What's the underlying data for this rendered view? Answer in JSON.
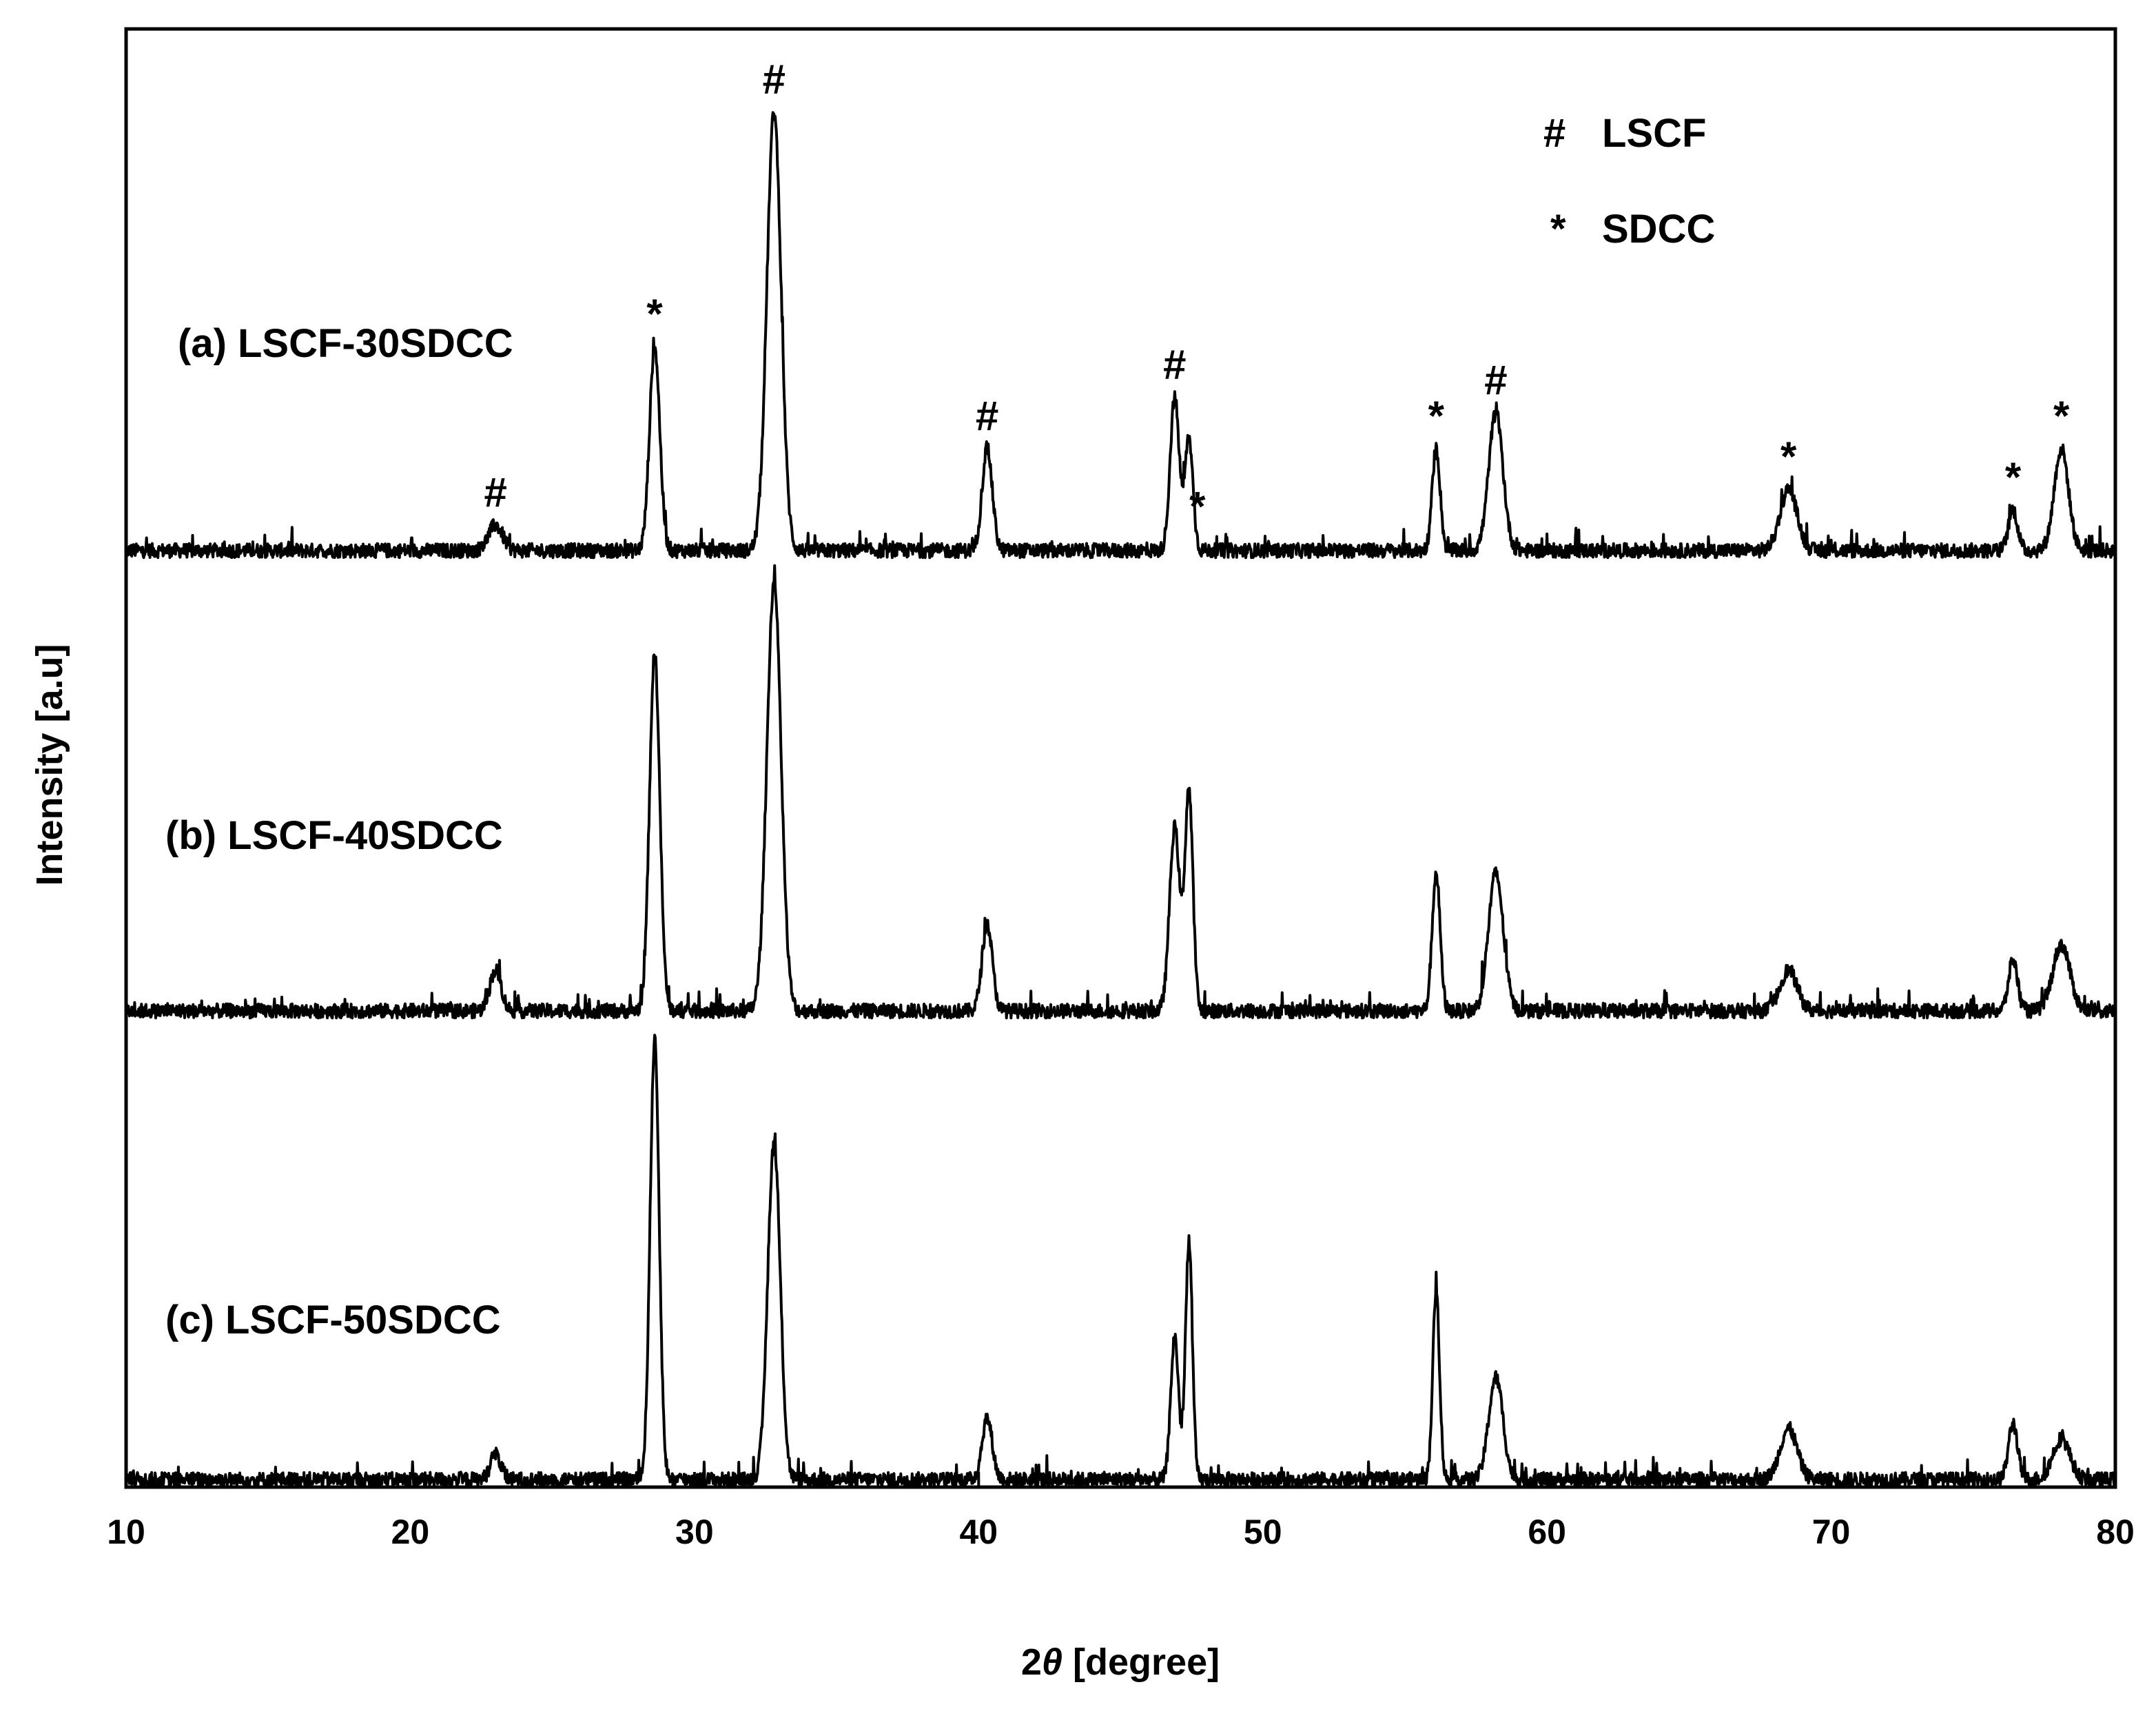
{
  "chart_data": {
    "type": "line",
    "xlabel_prefix": "2",
    "xlabel_symbol": "θ",
    "xlabel_suffix": " [degree]",
    "ylabel": "Intensity [a.u]",
    "xlim": [
      10,
      80
    ],
    "xticks": [
      "10",
      "20",
      "30",
      "40",
      "50",
      "60",
      "70",
      "80"
    ],
    "y_ticks_labeled": false,
    "grid": false,
    "legend_position": "top-right",
    "legend": [
      {
        "symbol": "#",
        "label": "LSCF"
      },
      {
        "symbol": "*",
        "label": "SDCC"
      }
    ],
    "series": [
      {
        "name": "(a) LSCF-30SDCC",
        "peaks": [
          {
            "x": 23.0,
            "h": 0.05,
            "w": 0.25
          },
          {
            "x": 28.6,
            "h": 0.4,
            "w": 0.18
          },
          {
            "x": 32.8,
            "h": 0.86,
            "w": 0.25
          },
          {
            "x": 40.3,
            "h": 0.2,
            "w": 0.18
          },
          {
            "x": 46.9,
            "h": 0.3,
            "w": 0.16
          },
          {
            "x": 47.4,
            "h": 0.22,
            "w": 0.14
          },
          {
            "x": 56.1,
            "h": 0.2,
            "w": 0.14
          },
          {
            "x": 58.2,
            "h": 0.27,
            "w": 0.25
          },
          {
            "x": 68.5,
            "h": 0.12,
            "w": 0.3
          },
          {
            "x": 76.4,
            "h": 0.08,
            "w": 0.16
          },
          {
            "x": 78.1,
            "h": 0.2,
            "w": 0.25
          }
        ]
      },
      {
        "name": "(b) LSCF-40SDCC",
        "peaks": [
          {
            "x": 23.0,
            "h": 0.08,
            "w": 0.2
          },
          {
            "x": 28.6,
            "h": 0.7,
            "w": 0.18
          },
          {
            "x": 32.8,
            "h": 0.84,
            "w": 0.25
          },
          {
            "x": 40.3,
            "h": 0.17,
            "w": 0.18
          },
          {
            "x": 46.9,
            "h": 0.36,
            "w": 0.18
          },
          {
            "x": 47.4,
            "h": 0.43,
            "w": 0.14
          },
          {
            "x": 56.1,
            "h": 0.27,
            "w": 0.14
          },
          {
            "x": 58.2,
            "h": 0.27,
            "w": 0.26
          },
          {
            "x": 68.5,
            "h": 0.08,
            "w": 0.3
          },
          {
            "x": 76.4,
            "h": 0.1,
            "w": 0.16
          },
          {
            "x": 78.1,
            "h": 0.13,
            "w": 0.3
          }
        ]
      },
      {
        "name": "(c) LSCF-50SDCC",
        "peaks": [
          {
            "x": 23.0,
            "h": 0.05,
            "w": 0.18
          },
          {
            "x": 28.6,
            "h": 0.86,
            "w": 0.16
          },
          {
            "x": 32.8,
            "h": 0.66,
            "w": 0.22
          },
          {
            "x": 40.3,
            "h": 0.12,
            "w": 0.18
          },
          {
            "x": 46.9,
            "h": 0.28,
            "w": 0.14
          },
          {
            "x": 47.4,
            "h": 0.47,
            "w": 0.12
          },
          {
            "x": 56.1,
            "h": 0.37,
            "w": 0.12
          },
          {
            "x": 58.2,
            "h": 0.2,
            "w": 0.25
          },
          {
            "x": 68.5,
            "h": 0.1,
            "w": 0.3
          },
          {
            "x": 76.4,
            "h": 0.11,
            "w": 0.16
          },
          {
            "x": 78.1,
            "h": 0.08,
            "w": 0.3
          }
        ]
      }
    ],
    "phase_markers": [
      {
        "symbol": "#",
        "x": 23.0,
        "series": 0
      },
      {
        "symbol": "*",
        "x": 28.6,
        "series": 0
      },
      {
        "symbol": "#",
        "x": 32.8,
        "series": 0
      },
      {
        "symbol": "#",
        "x": 40.3,
        "series": 0
      },
      {
        "symbol": "#",
        "x": 46.9,
        "series": 0
      },
      {
        "symbol": "*",
        "x": 47.7,
        "series": 0
      },
      {
        "symbol": "*",
        "x": 56.1,
        "series": 0
      },
      {
        "symbol": "#",
        "x": 58.2,
        "series": 0
      },
      {
        "symbol": "*",
        "x": 68.5,
        "series": 0
      },
      {
        "symbol": "*",
        "x": 76.4,
        "series": 0
      },
      {
        "symbol": "*",
        "x": 78.1,
        "series": 0
      }
    ]
  }
}
